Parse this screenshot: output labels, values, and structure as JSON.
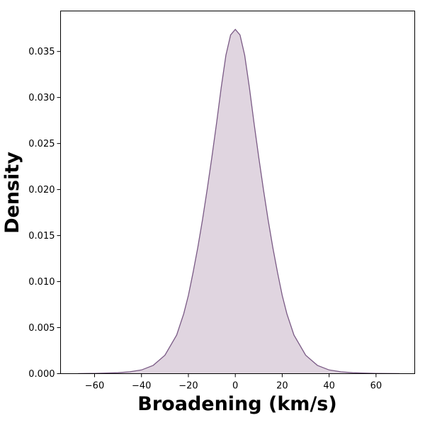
{
  "chart_data": {
    "type": "area",
    "title": "",
    "xlabel": "Broadening (km/s)",
    "ylabel": "Density",
    "xlim": [
      -74.5,
      76.5
    ],
    "ylim": [
      0,
      0.0394
    ],
    "x_ticks": [
      -60,
      -40,
      -20,
      0,
      20,
      40,
      60
    ],
    "x_tick_labels": [
      "−60",
      "−40",
      "−20",
      "0",
      "20",
      "40",
      "60"
    ],
    "y_ticks": [
      0.0,
      0.005,
      0.01,
      0.015,
      0.02,
      0.025,
      0.03,
      0.035
    ],
    "y_tick_labels": [
      "0.000",
      "0.005",
      "0.010",
      "0.015",
      "0.020",
      "0.025",
      "0.030",
      "0.035"
    ],
    "grid": false,
    "legend": "none",
    "series": [
      {
        "x": [
          -67,
          -60,
          -50,
          -45,
          -40,
          -35,
          -30,
          -25,
          -22,
          -20,
          -18,
          -16,
          -14,
          -12,
          -10,
          -8,
          -6,
          -4,
          -2,
          0,
          2,
          4,
          6,
          8,
          10,
          12,
          14,
          16,
          18,
          20,
          22,
          25,
          30,
          35,
          40,
          45,
          50,
          60,
          70
        ],
        "y": [
          1e-05,
          3e-05,
          0.0001,
          0.0002,
          0.0004,
          0.0009,
          0.002,
          0.0042,
          0.0065,
          0.0085,
          0.011,
          0.0137,
          0.0167,
          0.02,
          0.0235,
          0.0272,
          0.0311,
          0.0346,
          0.0368,
          0.0374,
          0.0368,
          0.0346,
          0.0311,
          0.0272,
          0.0235,
          0.02,
          0.0167,
          0.0137,
          0.011,
          0.0085,
          0.0065,
          0.0042,
          0.002,
          0.0009,
          0.0004,
          0.0002,
          0.0001,
          3e-05,
          1e-05
        ],
        "color": "#7a5a85",
        "fill_color": "#e0d5e0"
      }
    ]
  }
}
